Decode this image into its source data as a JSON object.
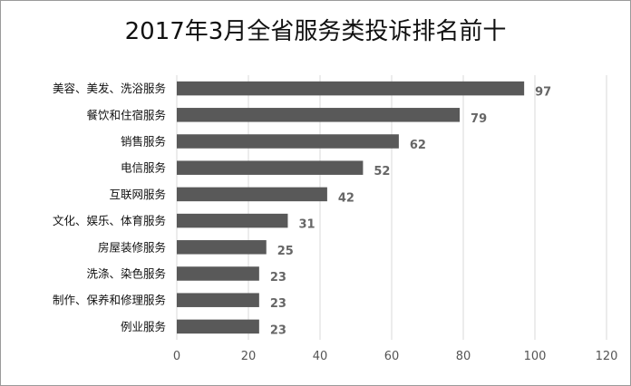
{
  "chart_data": {
    "type": "bar",
    "orientation": "horizontal",
    "title": "2017年3月全省服务类投诉排名前十",
    "categories": [
      "美容、美发、洗浴服务",
      "餐饮和住宿服务",
      "销售服务",
      "电信服务",
      "互联网服务",
      "文化、娱乐、体育服务",
      "房屋装修服务",
      "洗涤、染色服务",
      "制作、保养和修理服务",
      "例业服务"
    ],
    "values": [
      97,
      79,
      62,
      52,
      42,
      31,
      25,
      23,
      23,
      23
    ],
    "xlim": [
      0,
      120
    ],
    "xticks": [
      "0",
      "20",
      "40",
      "60",
      "80",
      "100",
      "120"
    ],
    "xlabel": "",
    "ylabel": "",
    "grid": "vertical",
    "legend": "none",
    "bar_color": "#595959",
    "grid_color": "#d9d9d9"
  }
}
